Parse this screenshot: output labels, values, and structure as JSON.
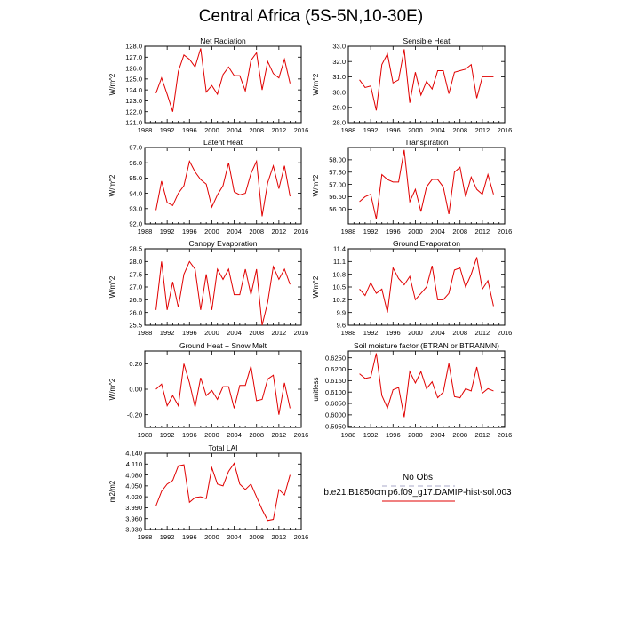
{
  "title": "Central Africa (5S-5N,10-30E)",
  "years": [
    1990,
    1991,
    1992,
    1993,
    1994,
    1995,
    1996,
    1997,
    1998,
    1999,
    2000,
    2001,
    2002,
    2003,
    2004,
    2005,
    2006,
    2007,
    2008,
    2009,
    2010,
    2011,
    2012,
    2013,
    2014
  ],
  "chart_data": [
    {
      "id": "net-radiation",
      "type": "line",
      "title": "Net Radiation",
      "ylabel": "W/m^2",
      "xlim": [
        1988,
        2016
      ],
      "xticks": [
        "1988",
        "1992",
        "1996",
        "2000",
        "2004",
        "2008",
        "2012",
        "2016"
      ],
      "ylim": [
        121,
        128
      ],
      "yticks": [
        "121.0",
        "122.0",
        "123.0",
        "124.0",
        "125.0",
        "126.0",
        "127.0",
        "128.0"
      ],
      "series": [
        {
          "values": [
            123.7,
            125.1,
            123.6,
            122.0,
            125.7,
            127.2,
            126.8,
            126.1,
            127.8,
            123.8,
            124.4,
            123.6,
            125.4,
            126.1,
            125.3,
            125.3,
            123.9,
            126.7,
            127.4,
            124.0,
            126.6,
            125.5,
            125.1,
            126.8,
            124.6
          ]
        }
      ]
    },
    {
      "id": "sensible-heat",
      "type": "line",
      "title": "Sensible Heat",
      "ylabel": "W/m^2",
      "xlim": [
        1988,
        2016
      ],
      "xticks": [
        "1988",
        "1992",
        "1996",
        "2000",
        "2004",
        "2008",
        "2012",
        "2016"
      ],
      "ylim": [
        28,
        33
      ],
      "yticks": [
        "28.0",
        "29.0",
        "30.0",
        "31.0",
        "32.0",
        "33.0"
      ],
      "series": [
        {
          "values": [
            30.8,
            30.3,
            30.4,
            28.8,
            31.8,
            32.5,
            30.6,
            30.8,
            32.8,
            29.3,
            31.3,
            29.8,
            30.7,
            30.2,
            31.4,
            31.4,
            29.9,
            31.3,
            31.4,
            31.5,
            31.8,
            29.6,
            31.0,
            31.0,
            31.0
          ]
        }
      ]
    },
    {
      "id": "latent-heat",
      "type": "line",
      "title": "Latent Heat",
      "ylabel": "W/m^2",
      "xlim": [
        1988,
        2016
      ],
      "xticks": [
        "1988",
        "1992",
        "1996",
        "2000",
        "2004",
        "2008",
        "2012",
        "2016"
      ],
      "ylim": [
        92,
        97
      ],
      "yticks": [
        "92.0",
        "93.0",
        "94.0",
        "95.0",
        "96.0",
        "97.0"
      ],
      "series": [
        {
          "values": [
            92.9,
            94.8,
            93.4,
            93.2,
            94.0,
            94.5,
            96.1,
            95.4,
            94.9,
            94.6,
            93.1,
            93.9,
            94.5,
            96.0,
            94.1,
            93.9,
            94.0,
            95.3,
            96.1,
            92.5,
            94.7,
            95.8,
            94.3,
            95.8,
            93.8
          ]
        }
      ]
    },
    {
      "id": "transpiration",
      "type": "line",
      "title": "Transpiration",
      "ylabel": "W/m^2",
      "xlim": [
        1988,
        2016
      ],
      "xticks": [
        "1988",
        "1992",
        "1996",
        "2000",
        "2004",
        "2008",
        "2012",
        "2016"
      ],
      "ylim": [
        55.4,
        58.5
      ],
      "yticks": [
        "56.00",
        "56.50",
        "57.00",
        "57.50",
        "58.00"
      ],
      "series": [
        {
          "values": [
            56.3,
            56.5,
            56.6,
            55.6,
            57.4,
            57.2,
            57.1,
            57.1,
            58.4,
            56.3,
            56.8,
            55.9,
            56.9,
            57.2,
            57.2,
            56.9,
            55.8,
            57.5,
            57.7,
            56.5,
            57.3,
            56.8,
            56.6,
            57.4,
            56.6
          ]
        }
      ]
    },
    {
      "id": "canopy-evaporation",
      "type": "line",
      "title": "Canopy Evaporation",
      "ylabel": "W/m^2",
      "xlim": [
        1988,
        2016
      ],
      "xticks": [
        "1988",
        "1992",
        "1996",
        "2000",
        "2004",
        "2008",
        "2012",
        "2016"
      ],
      "ylim": [
        25.5,
        28.5
      ],
      "yticks": [
        "25.5",
        "26.0",
        "26.5",
        "27.0",
        "27.5",
        "28.0",
        "28.5"
      ],
      "series": [
        {
          "values": [
            26.1,
            28.0,
            26.1,
            27.2,
            26.2,
            27.5,
            28.0,
            27.7,
            26.1,
            27.5,
            26.1,
            27.7,
            27.3,
            27.7,
            26.7,
            26.7,
            27.7,
            26.7,
            27.7,
            25.5,
            26.4,
            27.8,
            27.3,
            27.7,
            27.1
          ]
        }
      ]
    },
    {
      "id": "ground-evaporation",
      "type": "line",
      "title": "Ground Evaporation",
      "ylabel": "W/m^2",
      "xlim": [
        1988,
        2016
      ],
      "xticks": [
        "1988",
        "1992",
        "1996",
        "2000",
        "2004",
        "2008",
        "2012",
        "2016"
      ],
      "ylim": [
        9.6,
        11.4
      ],
      "yticks": [
        "9.6",
        "9.9",
        "10.2",
        "10.5",
        "10.8",
        "11.1",
        "11.4"
      ],
      "series": [
        {
          "values": [
            10.45,
            10.3,
            10.6,
            10.35,
            10.45,
            9.9,
            10.95,
            10.7,
            10.55,
            10.75,
            10.2,
            10.35,
            10.5,
            11.0,
            10.2,
            10.2,
            10.35,
            10.9,
            10.95,
            10.5,
            10.8,
            11.2,
            10.45,
            10.65,
            10.05
          ]
        }
      ]
    },
    {
      "id": "ground-heat-snow-melt",
      "type": "line",
      "title": "Ground Heat + Snow Melt",
      "ylabel": "W/m^2",
      "xlim": [
        1988,
        2016
      ],
      "xticks": [
        "1988",
        "1992",
        "1996",
        "2000",
        "2004",
        "2008",
        "2012",
        "2016"
      ],
      "ylim": [
        -0.3,
        0.3
      ],
      "yticks": [
        "-0.20",
        "0.00",
        "0.20"
      ],
      "series": [
        {
          "values": [
            0.0,
            0.04,
            -0.13,
            -0.05,
            -0.13,
            0.2,
            0.05,
            -0.14,
            0.09,
            -0.05,
            -0.01,
            -0.08,
            0.02,
            0.02,
            -0.15,
            0.03,
            0.03,
            0.18,
            -0.09,
            -0.08,
            0.08,
            0.11,
            -0.2,
            0.05,
            -0.15
          ]
        }
      ]
    },
    {
      "id": "soil-moisture-factor",
      "type": "line",
      "title": "Soil moisture factor (BTRAN or BTRANMN)",
      "ylabel": "unitless",
      "xlim": [
        1988,
        2016
      ],
      "xticks": [
        "1988",
        "1992",
        "1996",
        "2000",
        "2004",
        "2008",
        "2012",
        "2016"
      ],
      "ylim": [
        0.5945,
        0.628
      ],
      "yticks": [
        "0.5950",
        "0.6000",
        "0.6050",
        "0.6100",
        "0.6150",
        "0.6200",
        "0.6250"
      ],
      "series": [
        {
          "values": [
            0.618,
            0.616,
            0.6165,
            0.627,
            0.6085,
            0.603,
            0.611,
            0.612,
            0.599,
            0.619,
            0.614,
            0.619,
            0.6115,
            0.6145,
            0.6075,
            0.61,
            0.6225,
            0.608,
            0.6075,
            0.6115,
            0.6105,
            0.621,
            0.6095,
            0.6115,
            0.6105
          ]
        }
      ]
    },
    {
      "id": "total-lai",
      "type": "line",
      "title": "Total LAI",
      "ylabel": "m2/m2",
      "xlim": [
        1988,
        2016
      ],
      "xticks": [
        "1988",
        "1992",
        "1996",
        "2000",
        "2004",
        "2008",
        "2012",
        "2016"
      ],
      "ylim": [
        3.93,
        4.14
      ],
      "yticks": [
        "3.930",
        "3.960",
        "3.990",
        "4.020",
        "4.050",
        "4.080",
        "4.110",
        "4.140"
      ],
      "series": [
        {
          "values": [
            3.995,
            4.035,
            4.055,
            4.065,
            4.105,
            4.108,
            4.005,
            4.018,
            4.02,
            4.015,
            4.1,
            4.055,
            4.05,
            4.09,
            4.112,
            4.055,
            4.04,
            4.055,
            4.02,
            3.985,
            3.955,
            3.958,
            4.04,
            4.025,
            4.08
          ]
        }
      ]
    }
  ],
  "legend": {
    "items": [
      {
        "label": "No Obs",
        "color": "#a9a9c8",
        "dash": "dashed"
      },
      {
        "label": "b.e21.B1850cmip6.f09_g17.DAMIP-hist-sol.003",
        "color": "#e00000",
        "dash": "solid"
      }
    ]
  }
}
